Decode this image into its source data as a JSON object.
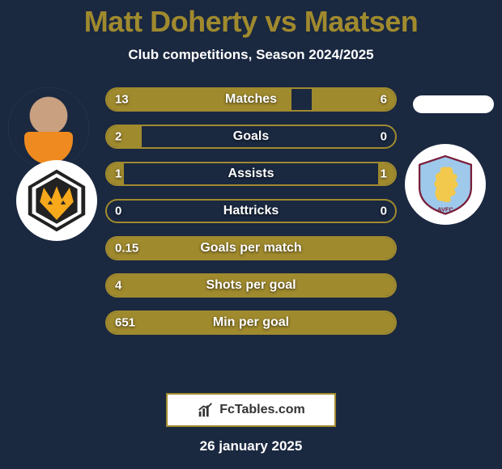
{
  "title": {
    "text": "Matt Doherty vs Maatsen",
    "color": "#a08a2e",
    "fontsize": 36
  },
  "subtitle": {
    "text": "Club competitions, Season 2024/2025",
    "fontsize": 17
  },
  "footer": {
    "brand": "FcTables.com",
    "date": "26 january 2025",
    "date_fontsize": 17
  },
  "colors": {
    "background": "#1a2840",
    "accent": "#a08a2e",
    "text": "#ffffff"
  },
  "stats": {
    "value_fontsize": 15,
    "label_fontsize": 16,
    "rows": [
      {
        "label": "Matches",
        "left": "13",
        "right": "6",
        "left_pct": 64,
        "right_pct": 29
      },
      {
        "label": "Goals",
        "left": "2",
        "right": "0",
        "left_pct": 12,
        "right_pct": 0
      },
      {
        "label": "Assists",
        "left": "1",
        "right": "1",
        "left_pct": 6,
        "right_pct": 6
      },
      {
        "label": "Hattricks",
        "left": "0",
        "right": "0",
        "left_pct": 0,
        "right_pct": 0
      },
      {
        "label": "Goals per match",
        "left": "0.15",
        "right": "",
        "left_pct": 100,
        "right_pct": 0
      },
      {
        "label": "Shots per goal",
        "left": "4",
        "right": "",
        "left_pct": 100,
        "right_pct": 0
      },
      {
        "label": "Min per goal",
        "left": "651",
        "right": "",
        "left_pct": 100,
        "right_pct": 0
      }
    ]
  },
  "clubs": {
    "left": {
      "name": "wolves",
      "primary": "#f7a81b",
      "secondary": "#222222"
    },
    "right": {
      "name": "avfc",
      "primary": "#9ec9eb",
      "secondary": "#7a1e3a",
      "accent": "#f2c94c"
    }
  }
}
